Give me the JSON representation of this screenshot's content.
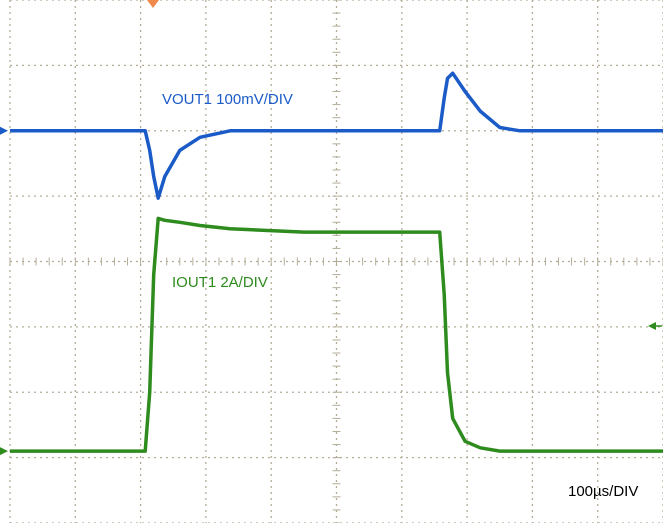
{
  "chart_data": {
    "type": "line",
    "xlabel": "100µs/DIV",
    "xlim": [
      0,
      1000
    ],
    "ylim": [
      0,
      8
    ],
    "xticks": [
      0,
      100,
      200,
      300,
      400,
      500,
      600,
      700,
      800,
      900,
      1000
    ],
    "yticks": [
      0,
      1,
      2,
      3,
      4,
      5,
      6,
      7,
      8
    ],
    "grid": true,
    "x": [
      0,
      207,
      214,
      220,
      227,
      237,
      260,
      291,
      337,
      450,
      658,
      665,
      670,
      678,
      697,
      720,
      750,
      781,
      1000
    ],
    "series": [
      {
        "name": "VOUT1 100mV/DIV",
        "color": "#1a5bc8",
        "values": [
          6.0,
          6.0,
          5.7,
          5.3,
          4.97,
          5.3,
          5.7,
          5.9,
          6.0,
          6.0,
          6.0,
          6.5,
          6.8,
          6.88,
          6.6,
          6.3,
          6.05,
          6.0,
          6.0
        ]
      },
      {
        "name": "IOUT1 2A/DIV",
        "color": "#2e8b1e",
        "values": [
          1.1,
          1.1,
          2.0,
          3.8,
          4.66,
          4.63,
          4.6,
          4.55,
          4.5,
          4.45,
          4.45,
          3.5,
          2.3,
          1.6,
          1.25,
          1.15,
          1.1,
          1.1,
          1.1
        ]
      }
    ]
  }
}
